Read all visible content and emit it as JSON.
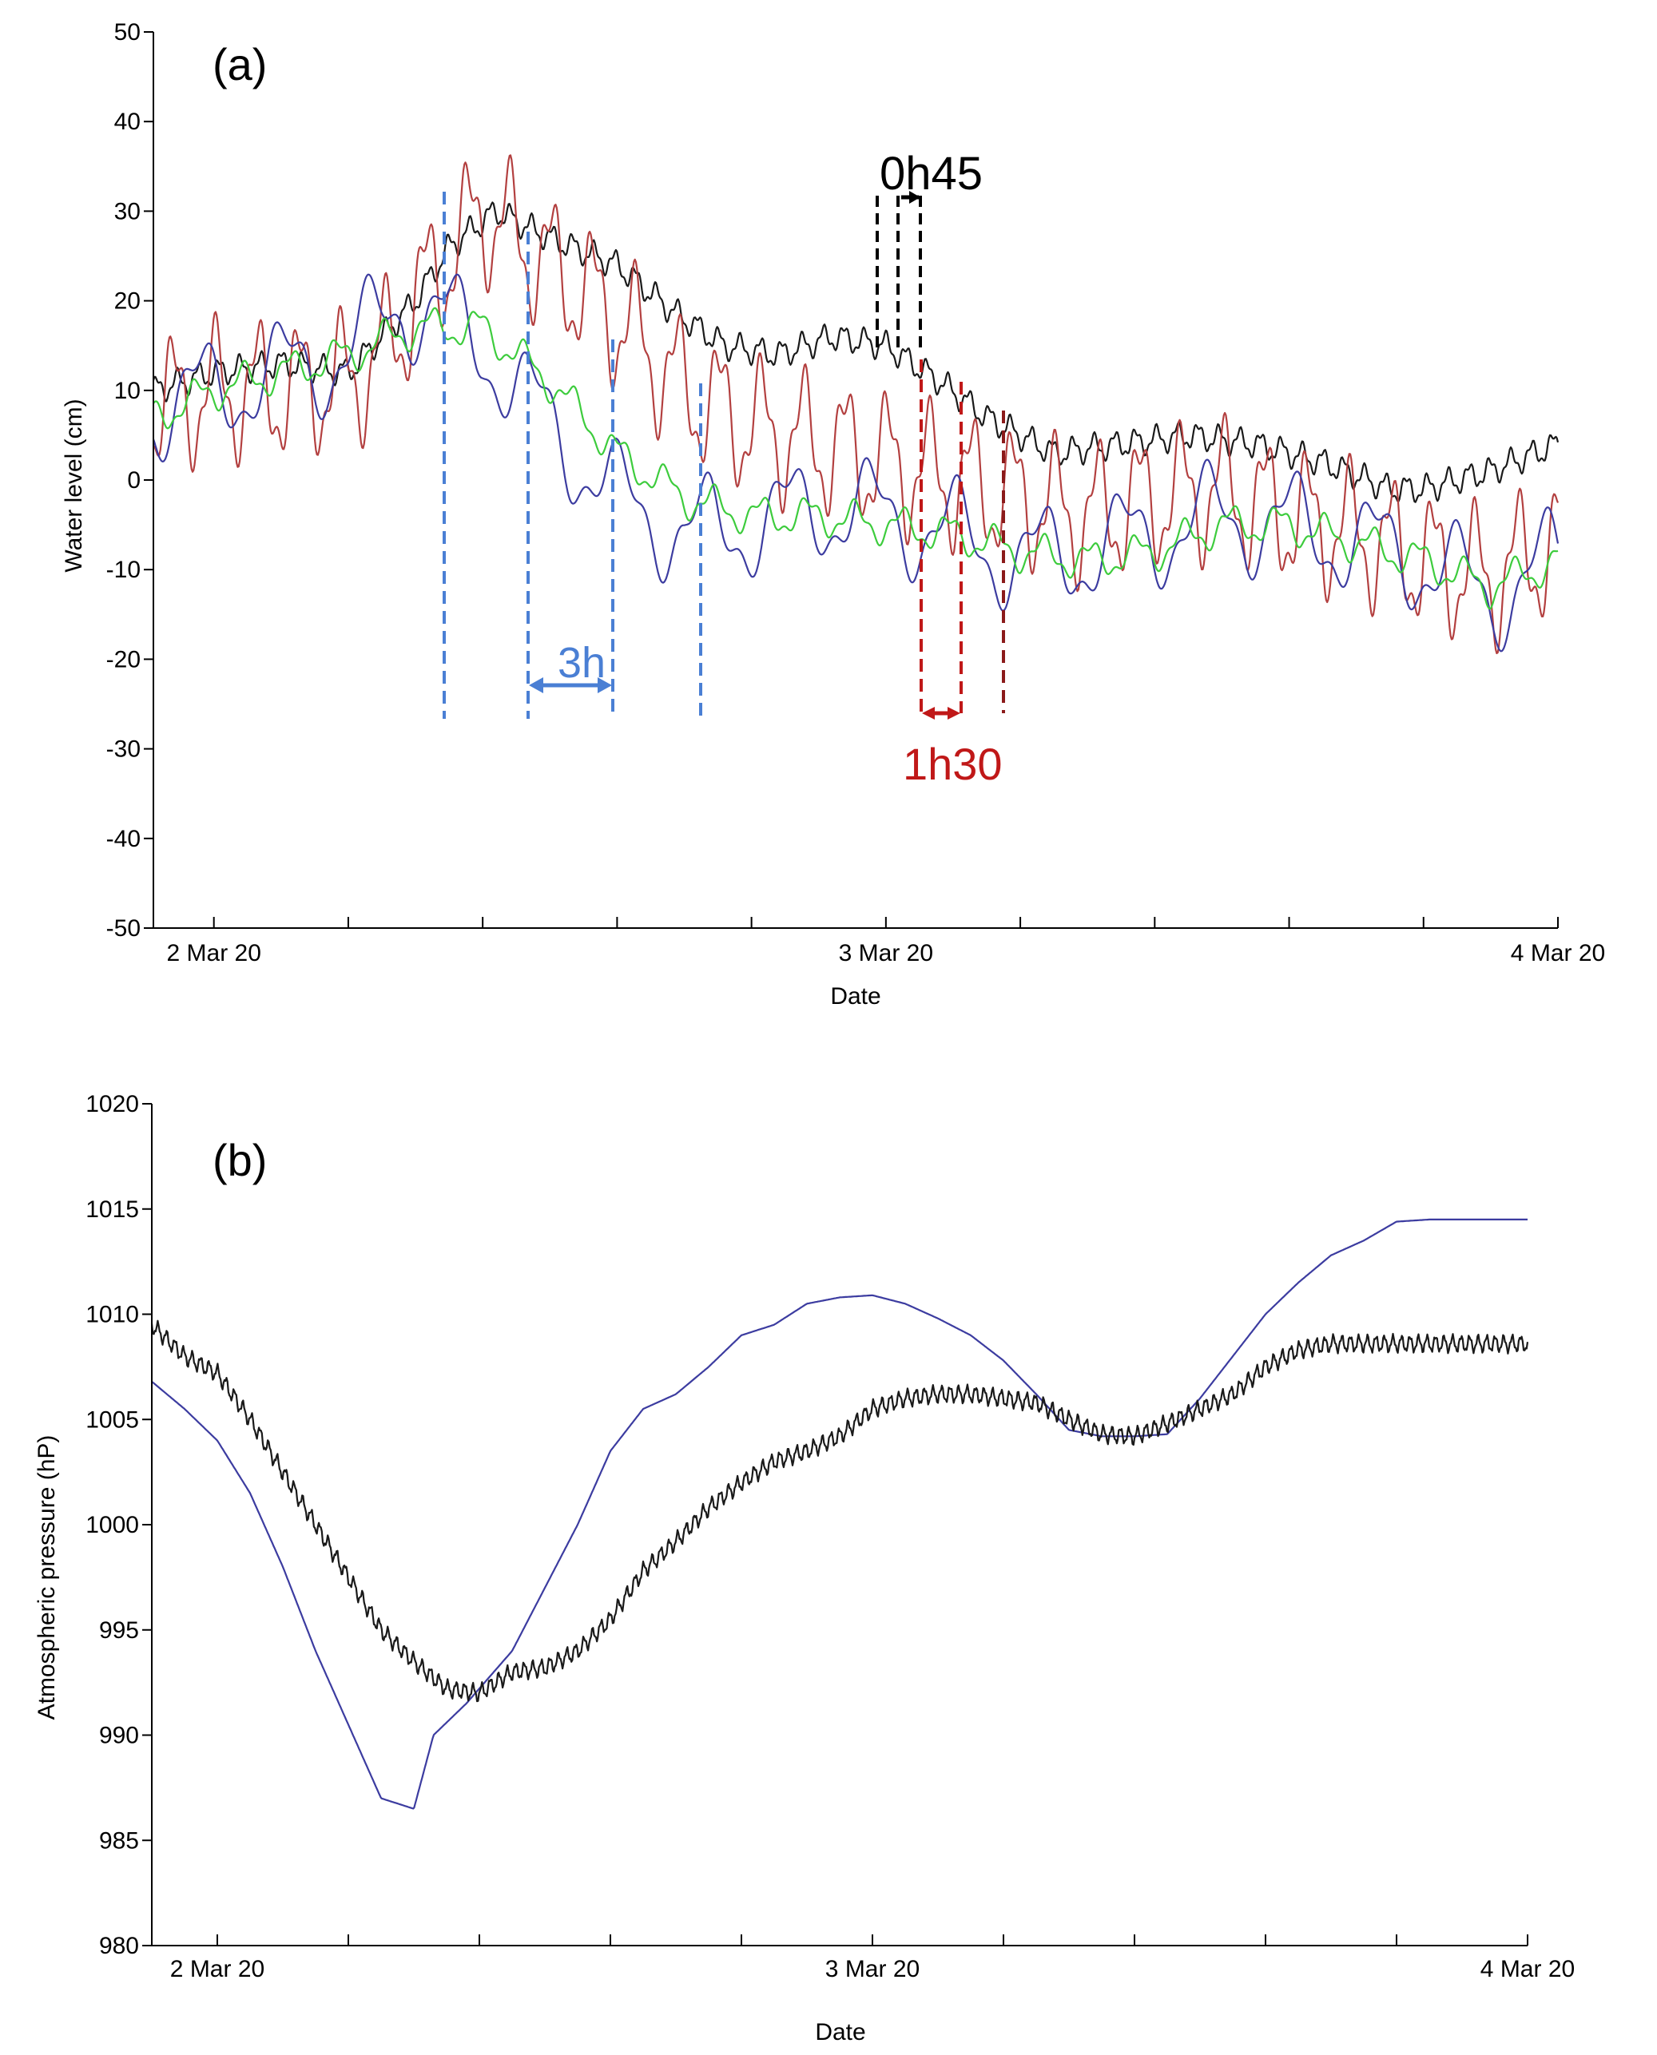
{
  "colors": {
    "black": "#1a1a1a",
    "red": "#b34040",
    "blue": "#3c3ca0",
    "green": "#3dcc3d",
    "ann_blue": "#4a7fd4",
    "ann_red": "#c01818",
    "ann_darkred": "#8b1a1a"
  },
  "chart_data": [
    {
      "type": "line",
      "panel_label": "(a)",
      "xlabel": "Date",
      "ylabel": "Water level (cm)",
      "xlim": [
        0,
        2
      ],
      "ylim": [
        -50,
        50
      ],
      "x_unit": "days after 2 Mar 20 00:00",
      "yticks": [
        "50",
        "40",
        "30",
        "20",
        "10",
        "0",
        "-10",
        "-20",
        "-30",
        "-40",
        "-50"
      ],
      "xtick_labels": [
        {
          "x": 0,
          "label": "2 Mar 20"
        },
        {
          "x": 1,
          "label": "3 Mar 20"
        },
        {
          "x": 2,
          "label": "4 Mar 20"
        }
      ],
      "minor_xticks": [
        0,
        0.2,
        0.4,
        0.6,
        0.8,
        1.0,
        1.2,
        1.4,
        1.6,
        1.8,
        2.0
      ],
      "series": [
        {
          "color": "black",
          "x": [
            -0.09,
            0.0,
            0.1,
            0.2,
            0.3,
            0.35,
            0.42,
            0.5,
            0.6,
            0.68,
            0.76,
            0.84,
            0.92,
            1.0,
            1.08,
            1.15,
            1.25,
            1.35,
            1.45,
            1.55,
            1.65,
            1.75,
            1.8,
            1.9,
            2.0
          ],
          "y": [
            10,
            12,
            13,
            12,
            20,
            26,
            30,
            27,
            24,
            19,
            15,
            14,
            16,
            15,
            11,
            7,
            3,
            4,
            5,
            4,
            2,
            -1,
            -1,
            1,
            4
          ],
          "osc_amp": 1.3,
          "osc_period": 0.031
        },
        {
          "color": "red",
          "x": [
            -0.09,
            0.0,
            0.1,
            0.2,
            0.25,
            0.3,
            0.4,
            0.5,
            0.6,
            0.7,
            0.8,
            0.9,
            1.0,
            1.1,
            1.2,
            1.3,
            1.4,
            1.5,
            1.6,
            1.7,
            1.8,
            1.9,
            2.0
          ],
          "y": [
            8,
            10,
            10,
            11,
            14,
            20,
            30,
            24,
            18,
            10,
            6,
            4,
            2,
            0,
            -2,
            -4,
            -2,
            -1,
            -4,
            -6,
            -9,
            -11,
            -7
          ],
          "osc_amp": 6.5,
          "osc_period": 0.0625
        },
        {
          "color": "blue",
          "x": [
            -0.09,
            0.0,
            0.1,
            0.2,
            0.28,
            0.34,
            0.4,
            0.5,
            0.6,
            0.7,
            0.8,
            0.9,
            1.0,
            1.1,
            1.2,
            1.3,
            1.4,
            1.5,
            1.6,
            1.7,
            1.8,
            1.9,
            2.0
          ],
          "y": [
            8,
            10,
            12,
            14,
            20,
            18,
            15,
            6,
            -2,
            -6,
            -5,
            -3,
            -4,
            -6,
            -9,
            -8,
            -6,
            -4,
            -5,
            -7,
            -9,
            -13,
            -9
          ],
          "osc_amp": 5,
          "osc_period": 0.125
        },
        {
          "color": "green",
          "x": [
            -0.09,
            0.0,
            0.1,
            0.2,
            0.3,
            0.4,
            0.5,
            0.6,
            0.7,
            0.8,
            0.9,
            1.0,
            1.1,
            1.2,
            1.3,
            1.4,
            1.5,
            1.6,
            1.7,
            1.8,
            1.9,
            2.0
          ],
          "y": [
            7,
            10,
            12,
            14,
            17,
            17,
            11,
            3,
            -2,
            -4,
            -4,
            -5,
            -6,
            -8,
            -9,
            -8,
            -5,
            -5,
            -7,
            -9,
            -12,
            -9
          ],
          "osc_amp": 1.8,
          "osc_period": 0.07
        }
      ],
      "annotations": [
        {
          "text": "0h45",
          "color": "black"
        },
        {
          "text": "3h",
          "color": "ann_blue"
        },
        {
          "text": "1h30",
          "color": "ann_red"
        }
      ]
    },
    {
      "type": "line",
      "panel_label": "(b)",
      "xlabel": "Date",
      "ylabel": "Atmospheric pressure (hP)",
      "xlim": [
        0,
        2
      ],
      "ylim": [
        980,
        1020
      ],
      "x_unit": "days after 2 Mar 20 00:00",
      "yticks": [
        "1020",
        "1015",
        "1010",
        "1005",
        "1000",
        "995",
        "990",
        "985",
        "980"
      ],
      "xtick_labels": [
        {
          "x": 0,
          "label": "2 Mar 20"
        },
        {
          "x": 1,
          "label": "3 Mar 20"
        },
        {
          "x": 2,
          "label": "4 Mar 20"
        }
      ],
      "minor_xticks": [
        0,
        0.2,
        0.4,
        0.6,
        0.8,
        1.0,
        1.2,
        1.4,
        1.6,
        1.8,
        2.0
      ],
      "series": [
        {
          "color": "blue",
          "x": [
            -0.1,
            -0.05,
            0.0,
            0.05,
            0.1,
            0.15,
            0.2,
            0.25,
            0.3,
            0.33,
            0.38,
            0.45,
            0.5,
            0.55,
            0.6,
            0.65,
            0.7,
            0.75,
            0.8,
            0.85,
            0.9,
            0.95,
            1.0,
            1.05,
            1.1,
            1.15,
            1.2,
            1.25,
            1.3,
            1.35,
            1.4,
            1.45,
            1.5,
            1.55,
            1.58,
            1.6,
            1.65,
            1.7,
            1.75,
            1.8,
            1.85,
            1.9,
            1.95,
            2.0
          ],
          "y": [
            1006.8,
            1005.5,
            1004,
            1001.5,
            998,
            994,
            990.5,
            987,
            986.5,
            990,
            991.5,
            994,
            997,
            1000,
            1003.5,
            1005.5,
            1006.2,
            1007.5,
            1009,
            1009.5,
            1010.5,
            1010.8,
            1010.9,
            1010.5,
            1009.8,
            1009,
            1007.8,
            1006.2,
            1004.5,
            1004.2,
            1004.2,
            1004.3,
            1006,
            1008,
            1009.2,
            1010,
            1011.5,
            1012.8,
            1013.5,
            1014.4,
            1014.5,
            1014.5,
            1014.5,
            1014.5
          ],
          "osc_amp": 0,
          "osc_period": 0.1
        },
        {
          "color": "black",
          "x": [
            -0.1,
            -0.05,
            0.0,
            0.05,
            0.1,
            0.15,
            0.2,
            0.25,
            0.3,
            0.35,
            0.4,
            0.45,
            0.5,
            0.55,
            0.6,
            0.65,
            0.7,
            0.75,
            0.8,
            0.85,
            0.9,
            0.95,
            1.0,
            1.05,
            1.1,
            1.15,
            1.2,
            1.25,
            1.3,
            1.35,
            1.4,
            1.45,
            1.5,
            1.55,
            1.6,
            1.65,
            1.7,
            1.75,
            1.8,
            1.85,
            1.9,
            1.95,
            2.0
          ],
          "y": [
            1009.5,
            1008,
            1007.2,
            1005,
            1002.5,
            1000,
            997.5,
            995,
            993.5,
            992.2,
            992,
            993,
            993.2,
            994,
            995.5,
            997.8,
            999.2,
            1000.8,
            1002,
            1003,
            1003.5,
            1004.2,
            1005.5,
            1006,
            1006.2,
            1006.2,
            1006,
            1005.8,
            1005,
            1004.3,
            1004.2,
            1004.8,
            1005.5,
            1006.2,
            1007.5,
            1008.3,
            1008.6,
            1008.6,
            1008.6,
            1008.6,
            1008.6,
            1008.6,
            1008.6
          ],
          "osc_amp": 0.35,
          "osc_period": 0.013
        }
      ]
    }
  ]
}
